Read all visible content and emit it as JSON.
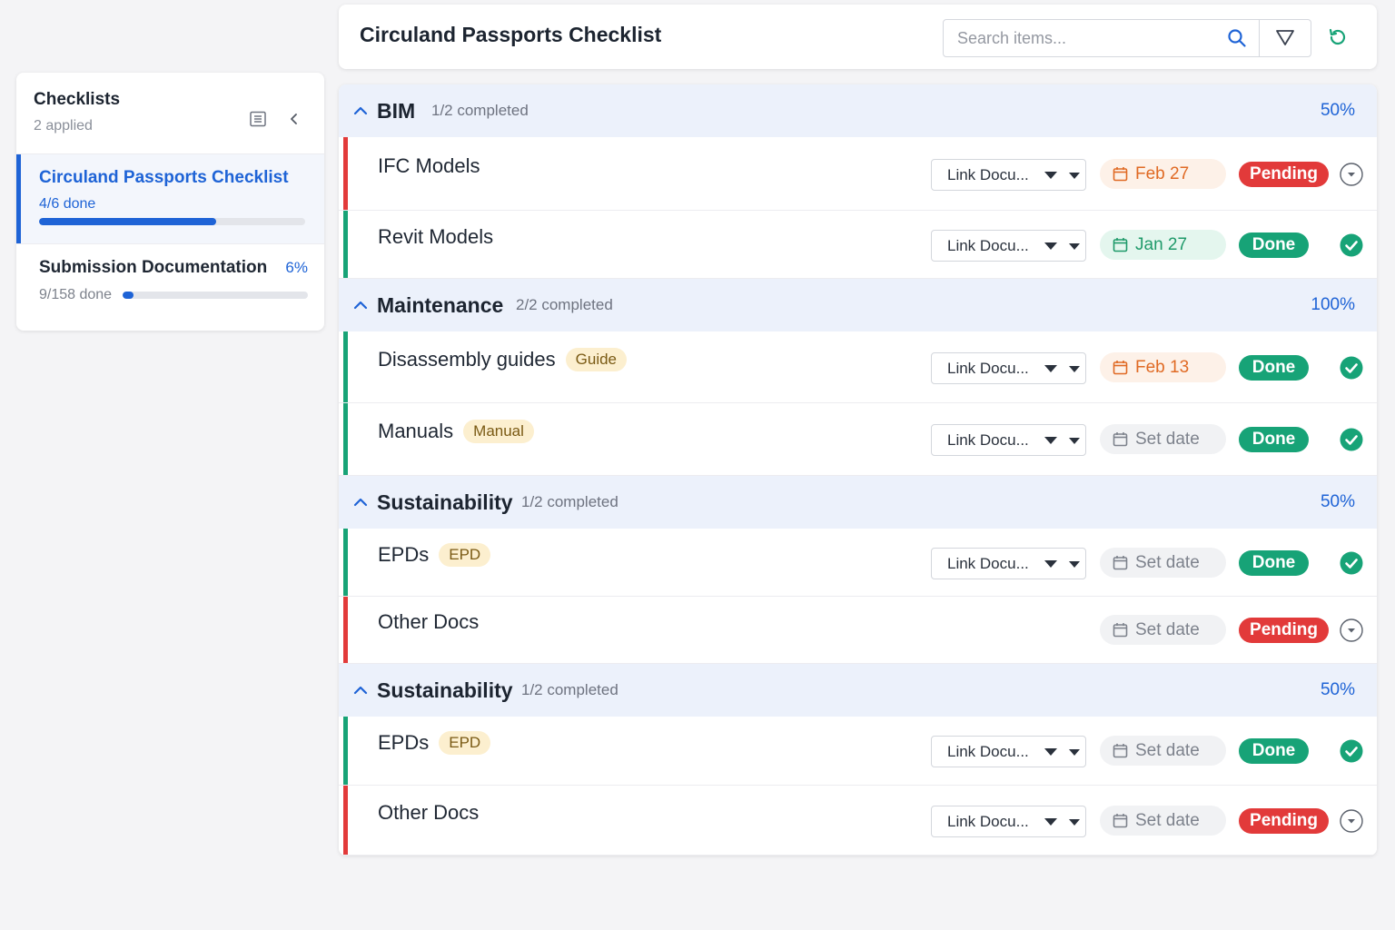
{
  "sidebar": {
    "title": "Checklists",
    "subtitle": "2 applied",
    "icons": [
      "list-icon",
      "chevron-left-icon"
    ],
    "items": [
      {
        "name": "Circuland Passports Checklist",
        "done": "4/6 done",
        "progress": 0.667
      },
      {
        "name": "Submission Documentation",
        "percent": "6%",
        "done": "9/158 done",
        "progress": 0.06
      }
    ]
  },
  "header": {
    "title": "Circuland Passports Checklist",
    "search_placeholder": "Search items...",
    "icons": [
      "search-icon",
      "filter-icon",
      "refresh-icon"
    ]
  },
  "colors": {
    "accent": "#1e63d6",
    "pending": "#e23a3a",
    "done": "#17a377",
    "tag_bg": "#fcefcf",
    "group_bg": "#ecf1fb"
  },
  "groups": [
    {
      "name": "BIM",
      "count": "1/2 completed",
      "percent": "50%",
      "items": [
        {
          "title": "IFC Models",
          "tag": "",
          "link": "Link Docu...",
          "date": "Feb 27",
          "date_style": "orange",
          "status": "Pending",
          "bar": "pending"
        },
        {
          "title": "Revit Models",
          "tag": "",
          "link": "Link Docu...",
          "date": "Jan 27",
          "date_style": "green",
          "status": "Done",
          "bar": "done"
        }
      ]
    },
    {
      "name": "Maintenance",
      "count": "2/2 completed",
      "percent": "100%",
      "items": [
        {
          "title": "Disassembly guides",
          "tag": "Guide",
          "link": "Link Docu...",
          "date": "Feb 13",
          "date_style": "orange",
          "status": "Done",
          "bar": "done"
        },
        {
          "title": "Manuals",
          "tag": "Manual",
          "link": "Link Docu...",
          "date": "Set date",
          "date_style": "gray",
          "status": "Done",
          "bar": "done"
        }
      ]
    },
    {
      "name": "Sustainability",
      "count": "1/2 completed",
      "percent": "50%",
      "items": [
        {
          "title": "EPDs",
          "tag": "EPD",
          "link": "Link Docu...",
          "date": "Set date",
          "date_style": "gray",
          "status": "Done",
          "bar": "done"
        },
        {
          "title": "Other Docs",
          "tag": "",
          "link": "",
          "date": "Set date",
          "date_style": "gray",
          "status": "Pending",
          "bar": "pending"
        }
      ]
    },
    {
      "name": "Sustainability",
      "count": "1/2 completed",
      "percent": "50%",
      "items": [
        {
          "title": "EPDs",
          "tag": "EPD",
          "link": "Link Docu...",
          "date": "Set date",
          "date_style": "gray",
          "status": "Done",
          "bar": "done"
        },
        {
          "title": "Other Docs",
          "tag": "",
          "link": "Link Docu...",
          "date": "Set date",
          "date_style": "gray",
          "status": "Pending",
          "bar": "pending"
        }
      ]
    }
  ]
}
